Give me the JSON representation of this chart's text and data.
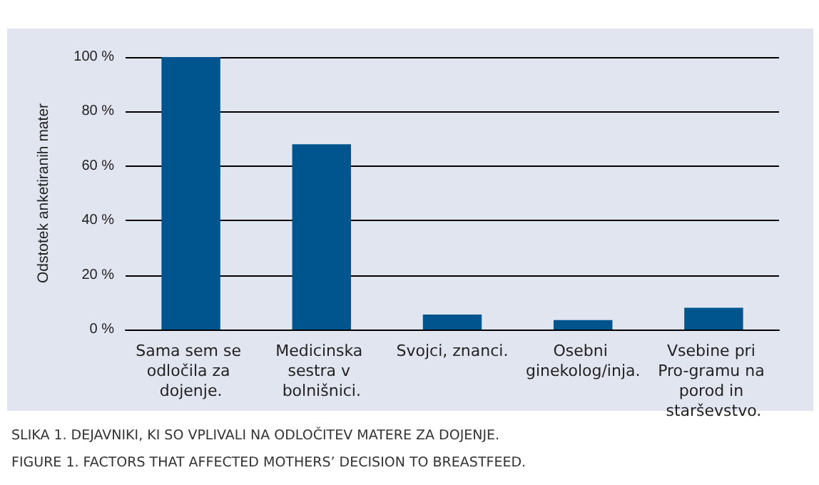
{
  "chart_data": {
    "type": "bar",
    "ylabel": "Odstotek anketiranih mater",
    "categories": [
      "Sama sem se odločila za dojenje.",
      "Medicinska sestra v bolnišnici.",
      "Svojci, znanci.",
      "Osebni ginekolog/inja.",
      "Vsebine pri Pro-gramu na porod in starševstvo."
    ],
    "values": [
      100,
      68,
      5.5,
      3.5,
      8
    ],
    "color": "#00558f",
    "ylim": [
      0,
      100
    ],
    "yticks": [
      {
        "value": 0,
        "label": "0 %"
      },
      {
        "value": 20,
        "label": "20 %"
      },
      {
        "value": 40,
        "label": "40 %"
      },
      {
        "value": 60,
        "label": "60 %"
      },
      {
        "value": 80,
        "label": "80 %"
      },
      {
        "value": 100,
        "label": "100 %"
      }
    ],
    "grid": "y",
    "annotations": [
      "SLIKA 1. DEJAVNIKI, KI SO VPLIVALI NA ODLOČITEV MATERE ZA DOJENJE.",
      "FIGURE 1. FACTORS THAT AFFECTED MOTHERS’ DECISION TO BREASTFEED."
    ]
  }
}
